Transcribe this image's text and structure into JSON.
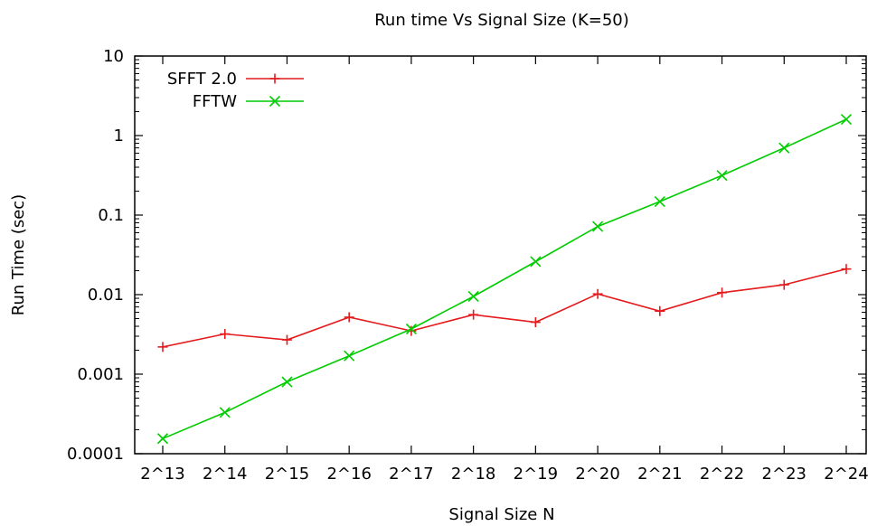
{
  "chart_data": {
    "type": "line",
    "title": "Run time Vs Signal Size (K=50)",
    "xlabel": "Signal Size N",
    "ylabel": "Run Time (sec)",
    "x_scale": "log2",
    "y_scale": "log10",
    "categories": [
      "2^13",
      "2^14",
      "2^15",
      "2^16",
      "2^17",
      "2^18",
      "2^19",
      "2^20",
      "2^21",
      "2^22",
      "2^23",
      "2^24"
    ],
    "yticks": [
      {
        "value": 0.0001,
        "label": "0.0001"
      },
      {
        "value": 0.001,
        "label": "0.001"
      },
      {
        "value": 0.01,
        "label": "0.01"
      },
      {
        "value": 0.1,
        "label": "0.1"
      },
      {
        "value": 1,
        "label": "1"
      },
      {
        "value": 10,
        "label": "10"
      }
    ],
    "ylim": [
      0.0001,
      10
    ],
    "grid": false,
    "legend_position": "top-left",
    "series": [
      {
        "name": "SFFT 2.0",
        "color": "#e41a1c",
        "marker": "plus",
        "values": [
          0.0022,
          0.0032,
          0.0027,
          0.0052,
          0.0035,
          0.0056,
          0.0045,
          0.0102,
          0.0062,
          0.0106,
          0.0133,
          0.021
        ]
      },
      {
        "name": "FFTW",
        "color": "#00cc00",
        "marker": "cross",
        "values": [
          0.000155,
          0.00033,
          0.0008,
          0.0017,
          0.0037,
          0.0095,
          0.026,
          0.072,
          0.148,
          0.315,
          0.7,
          1.6
        ]
      }
    ]
  }
}
